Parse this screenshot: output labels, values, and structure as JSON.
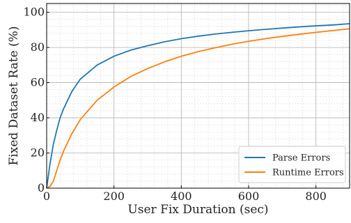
{
  "chart_data": {
    "type": "line",
    "title": "",
    "xlabel": "User Fix Duration (sec)",
    "ylabel": "Fixed Dataset Rate (%)",
    "xlim": [
      0,
      900
    ],
    "ylim": [
      0,
      105
    ],
    "xticks": [
      0,
      200,
      400,
      600,
      800
    ],
    "yticks": [
      0,
      20,
      40,
      60,
      80,
      100
    ],
    "xtick_labels": [
      "0",
      "200",
      "400",
      "600",
      "800"
    ],
    "ytick_labels": [
      "0",
      "20",
      "40",
      "60",
      "80",
      "100"
    ],
    "grid": true,
    "minor_grid": true,
    "legend_position": "lower-right",
    "x": [
      0,
      10,
      20,
      30,
      40,
      50,
      75,
      100,
      150,
      200,
      250,
      300,
      350,
      400,
      450,
      500,
      550,
      600,
      650,
      700,
      750,
      800,
      850,
      900
    ],
    "series": [
      {
        "name": "Parse Errors",
        "color": "#1f77b4",
        "values": [
          0,
          14,
          25,
          33,
          40,
          45,
          55,
          62,
          70,
          75,
          78.5,
          81,
          83.2,
          85,
          86.4,
          87.6,
          88.6,
          89.5,
          90.3,
          91,
          91.7,
          92.3,
          92.8,
          93.5
        ]
      },
      {
        "name": "Runtime Errors",
        "color": "#ff7f0e",
        "values": [
          0,
          1,
          4,
          10,
          16,
          21,
          31,
          39,
          50,
          57.5,
          63.5,
          68,
          71.8,
          75,
          77.6,
          79.8,
          81.8,
          83.5,
          85,
          86.3,
          87.5,
          88.6,
          89.6,
          90.6
        ]
      }
    ]
  }
}
